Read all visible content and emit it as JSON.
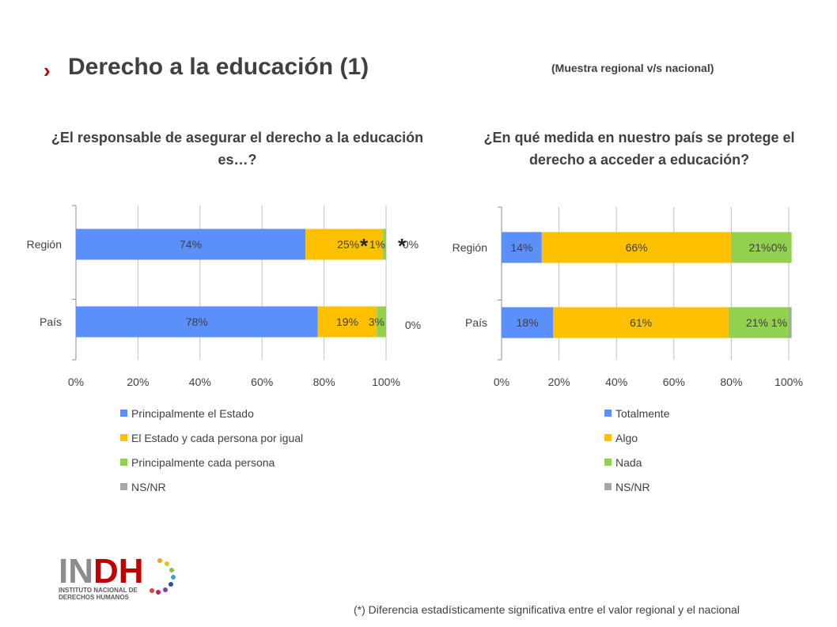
{
  "header": {
    "title": "Derecho a la educación (1)",
    "subtitle": "(Muestra regional v/s nacional)"
  },
  "footnote": "(*) Diferencia estadísticamente significativa entre el valor regional y el nacional",
  "logo": {
    "text": "INDH",
    "line1": "INSTITUTO NACIONAL DE",
    "line2": "DERECHOS HUMANOS"
  },
  "colors": {
    "blue": "#5b8ff9",
    "yellow": "#ffc000",
    "green": "#92d050",
    "gray": "#a6a6a6",
    "accent_red": "#c00000"
  },
  "chart_data": [
    {
      "type": "bar",
      "orientation": "horizontal",
      "stacked": true,
      "title": "¿El responsable de asegurar el derecho a la educación es…?",
      "categories": [
        "Región",
        "País"
      ],
      "series": [
        {
          "name": "Principalmente el Estado",
          "values": [
            74,
            78
          ],
          "labels": [
            "74%",
            "78%"
          ]
        },
        {
          "name": "El Estado y cada persona por igual",
          "values": [
            25,
            19
          ],
          "labels": [
            "25%",
            "19%"
          ]
        },
        {
          "name": "Principalmente cada persona",
          "values": [
            1,
            3
          ],
          "labels": [
            "1%",
            "3%"
          ]
        },
        {
          "name": "NS/NR",
          "values": [
            0,
            0
          ],
          "labels": [
            "0%",
            "0%"
          ]
        }
      ],
      "significance_marks": [
        {
          "category": "Región",
          "series": "El Estado y cada persona por igual",
          "mark": "*"
        },
        {
          "category": "Región",
          "series": "Principalmente cada persona",
          "mark": "*"
        }
      ],
      "x_ticks": [
        "0%",
        "20%",
        "40%",
        "60%",
        "80%",
        "100%"
      ],
      "xlim": [
        0,
        100
      ],
      "grid": true,
      "legend": "bottom"
    },
    {
      "type": "bar",
      "orientation": "horizontal",
      "stacked": true,
      "title": "¿En qué medida en nuestro país se protege el derecho a acceder a educación?",
      "categories": [
        "Región",
        "País"
      ],
      "series": [
        {
          "name": "Totalmente",
          "values": [
            14,
            18
          ],
          "labels": [
            "14%",
            "18%"
          ]
        },
        {
          "name": "Algo",
          "values": [
            66,
            61
          ],
          "labels": [
            "66%",
            "61%"
          ]
        },
        {
          "name": "Nada",
          "values": [
            21,
            21
          ],
          "labels": [
            "21%",
            "21%"
          ]
        },
        {
          "name": "NS/NR",
          "values": [
            0,
            1
          ],
          "labels": [
            "0%",
            "1%"
          ]
        }
      ],
      "x_ticks": [
        "0%",
        "20%",
        "40%",
        "60%",
        "80%",
        "100%"
      ],
      "xlim": [
        0,
        100
      ],
      "grid": true,
      "legend": "bottom"
    }
  ]
}
